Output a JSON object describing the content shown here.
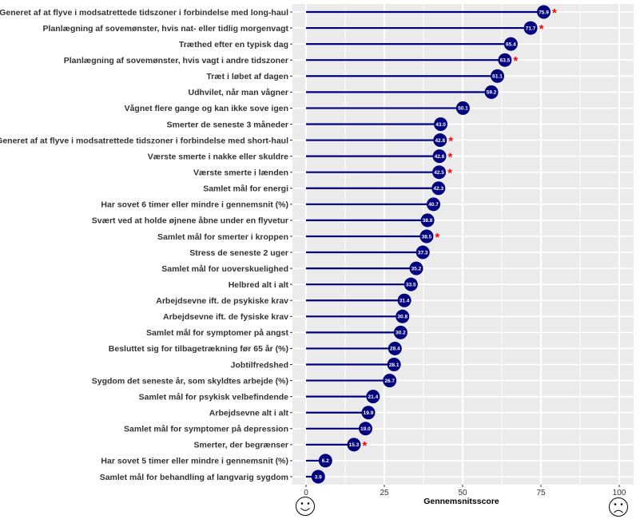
{
  "chart_data": {
    "type": "lollipop",
    "orientation": "horizontal",
    "xlabel": "Gennemsnitsscore",
    "xlim": [
      0,
      100
    ],
    "xticks": [
      0,
      25,
      50,
      75,
      100
    ],
    "grid": true,
    "colors": {
      "stem": "#00007f",
      "point": "#00007f",
      "value_text": "#ffffff",
      "marker": "#ff0000",
      "panel": "#ebebeb",
      "gridline": "#ffffff"
    },
    "marker_symbol": "*",
    "axis_icons": {
      "low": "smiling-face-icon",
      "high": "frowning-face-icon"
    },
    "rows": [
      {
        "label": "Generet af at flyve i modsatrettede tidszoner i forbindelse med long-haul",
        "value": 75.9,
        "marked": true
      },
      {
        "label": "Planlægning af sovemønster, hvis nat- eller tidlig morgenvagt",
        "value": 71.7,
        "marked": true
      },
      {
        "label": "Træthed efter en typisk dag",
        "value": 65.4,
        "marked": false
      },
      {
        "label": "Planlægning af sovemønster, hvis vagt i andre tidszoner",
        "value": 63.5,
        "marked": true
      },
      {
        "label": "Træt i løbet af dagen",
        "value": 61.1,
        "marked": false
      },
      {
        "label": "Udhvilet, når man vågner",
        "value": 59.2,
        "marked": false
      },
      {
        "label": "Vågnet flere gange og kan ikke sove igen",
        "value": 50.1,
        "marked": false
      },
      {
        "label": "Smerter de seneste 3 måneder",
        "value": 43.0,
        "marked": false
      },
      {
        "label": "Generet af at flyve i modsatrettede tidszoner i forbindelse med short-haul",
        "value": 42.8,
        "marked": true
      },
      {
        "label": "Værste smerte i nakke eller skuldre",
        "value": 42.6,
        "marked": true
      },
      {
        "label": "Værste smerte i lænden",
        "value": 42.5,
        "marked": true
      },
      {
        "label": "Samlet mål for energi",
        "value": 42.3,
        "marked": false
      },
      {
        "label": "Har sovet 6 timer eller mindre i gennemsnit (%)",
        "value": 40.7,
        "marked": false
      },
      {
        "label": "Svært ved at holde øjnene åbne under en flyvetur",
        "value": 38.8,
        "marked": false
      },
      {
        "label": "Samlet mål for smerter i kroppen",
        "value": 38.5,
        "marked": true
      },
      {
        "label": "Stress de seneste 2 uger",
        "value": 37.3,
        "marked": false
      },
      {
        "label": "Samlet mål for uoverskuelighed",
        "value": 35.2,
        "marked": false
      },
      {
        "label": "Helbred alt i alt",
        "value": 33.5,
        "marked": false
      },
      {
        "label": "Arbejdsevne ift. de psykiske krav",
        "value": 31.4,
        "marked": false
      },
      {
        "label": "Arbejdsevne ift. de fysiske krav",
        "value": 30.8,
        "marked": false
      },
      {
        "label": "Samlet mål for symptomer på angst",
        "value": 30.2,
        "marked": false
      },
      {
        "label": "Besluttet sig for tilbagetrækning før 65 år (%)",
        "value": 28.4,
        "marked": false
      },
      {
        "label": "Jobtilfredshed",
        "value": 28.1,
        "marked": false
      },
      {
        "label": "Sygdom det seneste år, som skyldtes arbejde (%)",
        "value": 26.7,
        "marked": false
      },
      {
        "label": "Samlet mål for psykisk velbefindende",
        "value": 21.4,
        "marked": false
      },
      {
        "label": "Arbejdsevne alt i alt",
        "value": 19.9,
        "marked": false
      },
      {
        "label": "Samlet mål for symptomer på depression",
        "value": 19.0,
        "marked": false
      },
      {
        "label": "Smerter, der begrænser",
        "value": 15.3,
        "marked": true
      },
      {
        "label": "Har sovet 5 timer eller mindre i gennemsnit (%)",
        "value": 6.2,
        "marked": false
      },
      {
        "label": "Samlet mål for behandling af langvarig sygdom",
        "value": 3.9,
        "marked": false
      }
    ]
  }
}
